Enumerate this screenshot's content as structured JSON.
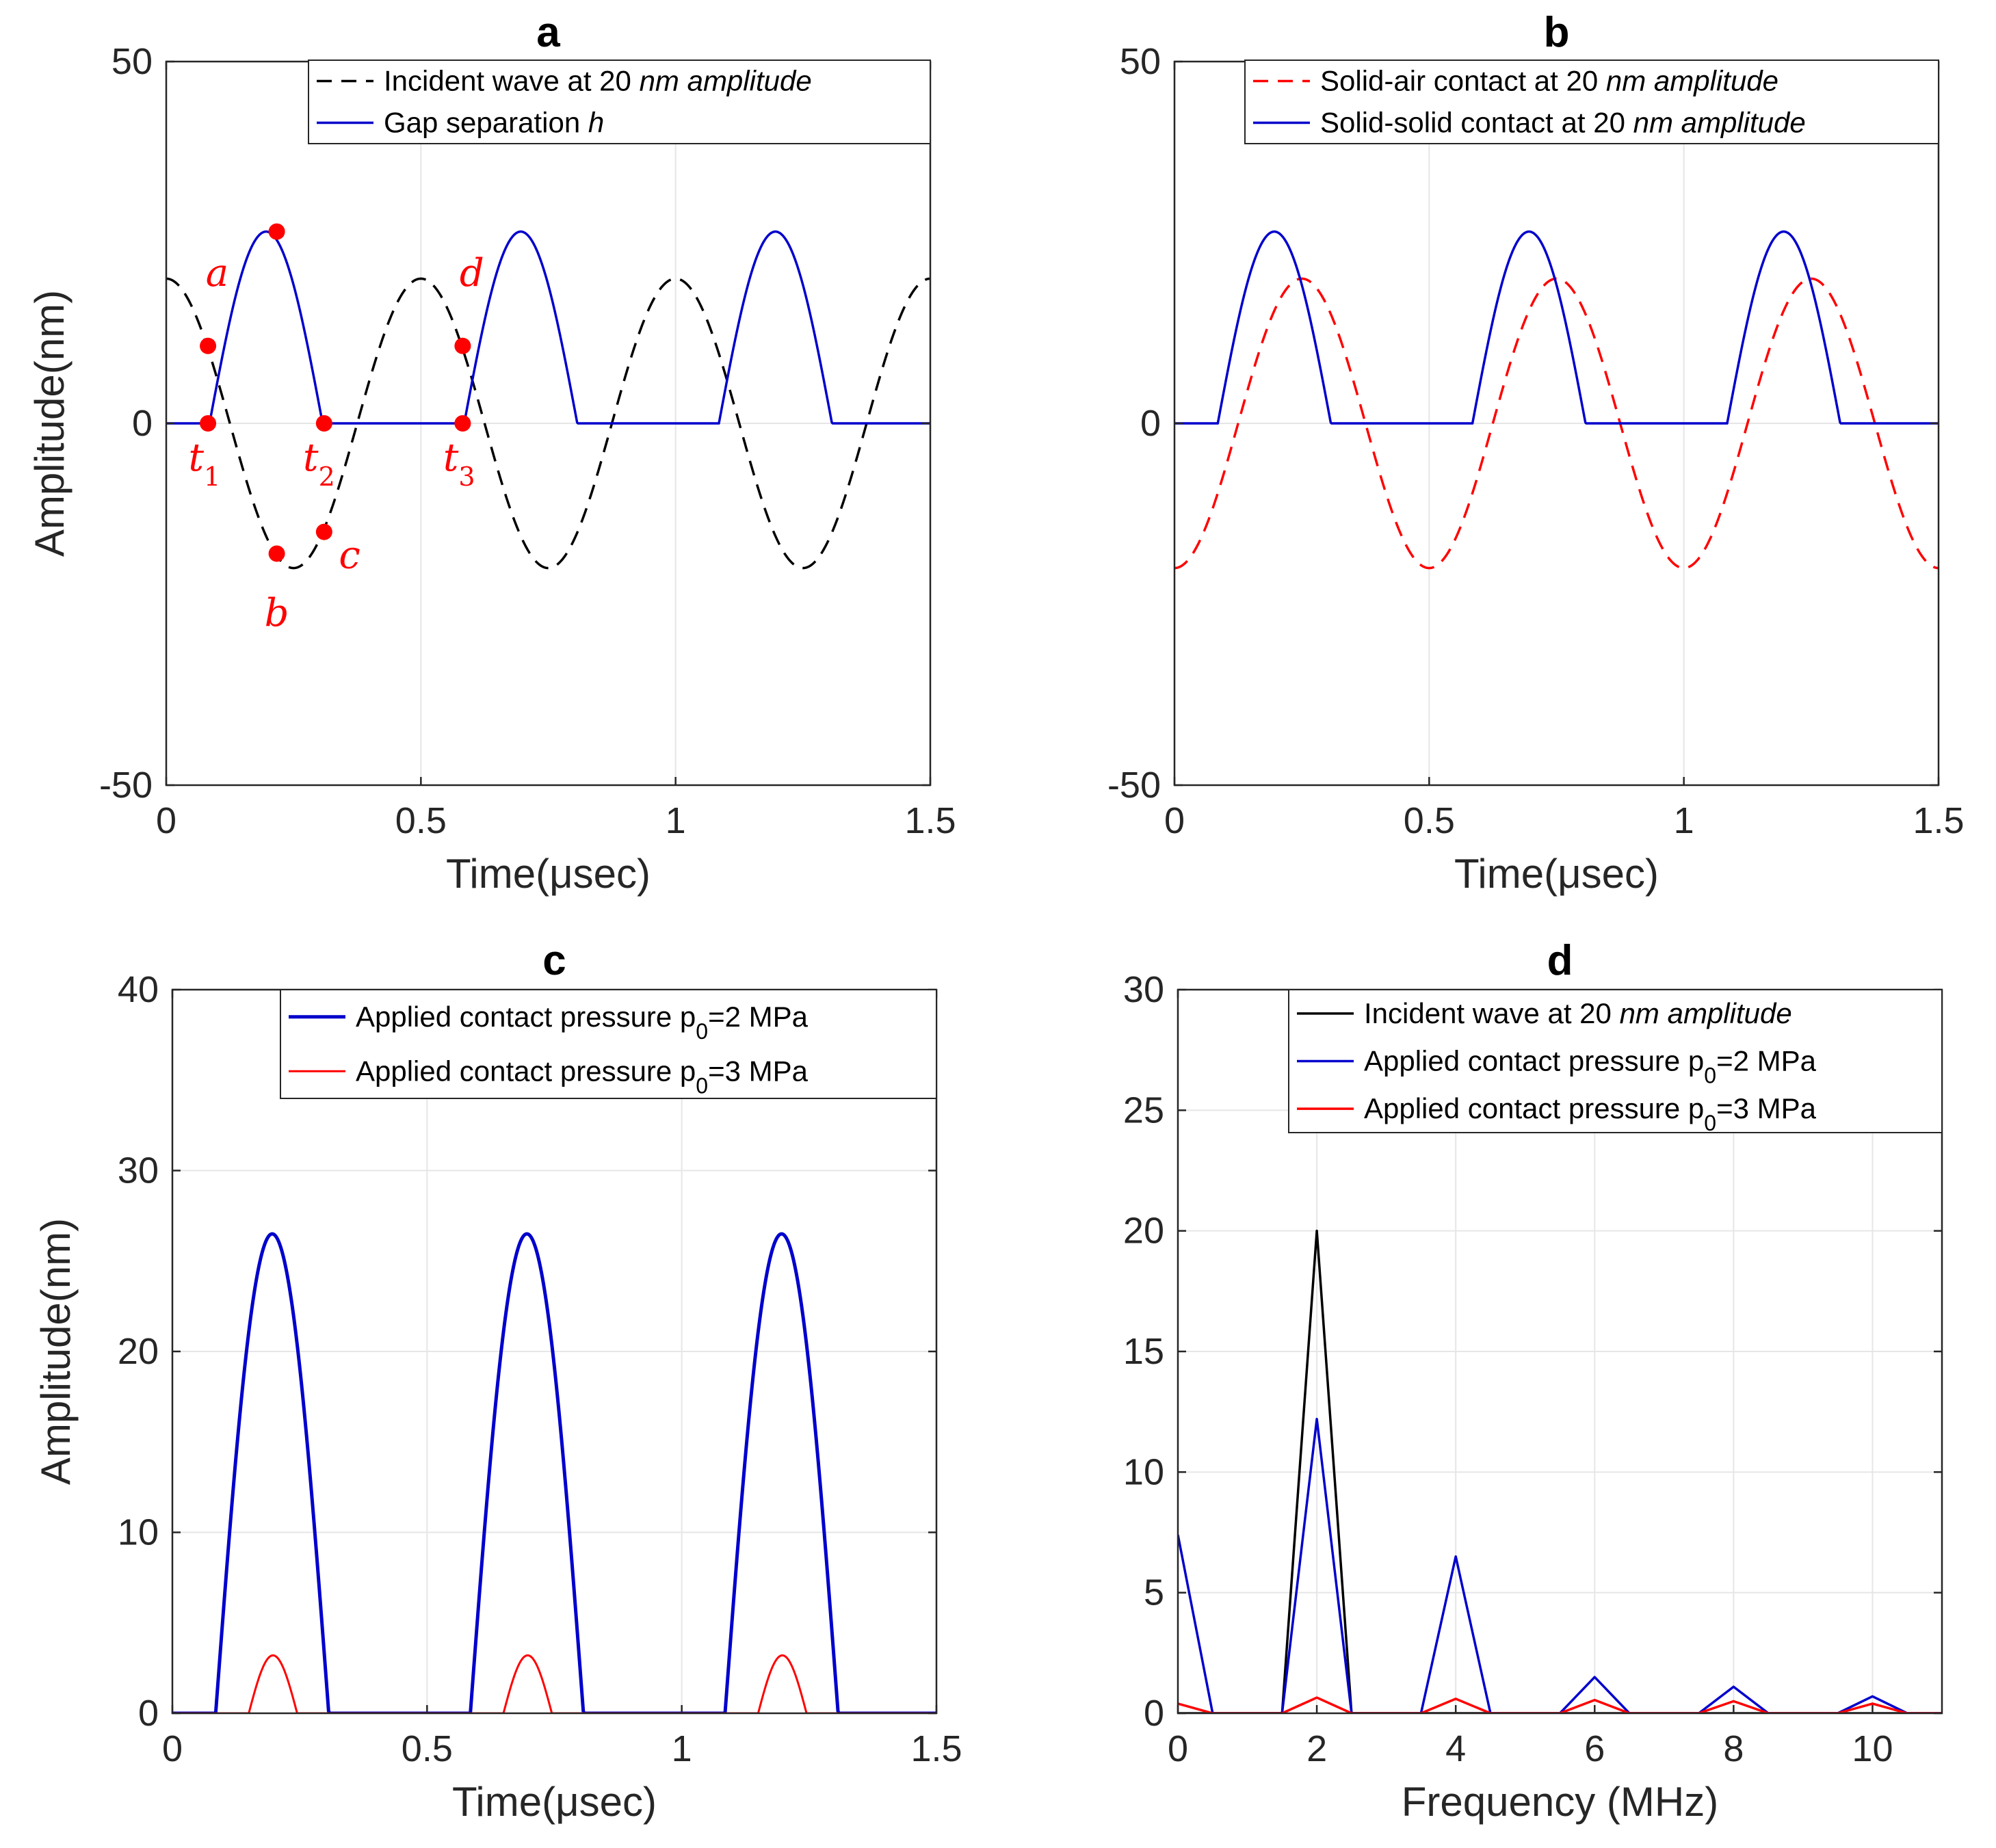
{
  "colors": {
    "black": "#000000",
    "blue": "#0000cc",
    "red": "#ff0000",
    "grid": "#e6e6e6",
    "axis": "#262626"
  },
  "chart_data": [
    {
      "id": "a",
      "type": "line",
      "title": "a",
      "xlabel": "Time(μsec)",
      "ylabel": "Amplitude(nm)",
      "xlim": [
        0,
        1.5
      ],
      "ylim": [
        -50,
        50
      ],
      "xticks": [
        0,
        0.5,
        1,
        1.5
      ],
      "xtick_labels": [
        "0",
        "0.5",
        "1",
        "1.5"
      ],
      "yticks": [
        -50,
        0,
        50
      ],
      "ytick_labels": [
        "-50",
        "0",
        "50"
      ],
      "grid": true,
      "legend_position": "top-right",
      "series": [
        {
          "name": "Incident wave at 20 nm amplitude",
          "legend_plain": "Incident wave at 20 ",
          "legend_italic": "nm amplitude",
          "legend_tail": "",
          "style": "dashed",
          "color": "black",
          "func": "cos",
          "amplitude": 20,
          "frequency_mhz": 2,
          "phase": 0
        },
        {
          "name": "Gap separation h",
          "legend_plain": "Gap separation ",
          "legend_italic": "h",
          "legend_tail": "",
          "style": "solid",
          "color": "blue",
          "func": "clipped_sin",
          "amplitude": 26.5,
          "period": 0.5,
          "segments": [
            [
              0.085,
              0.307
            ]
          ]
        }
      ],
      "annotations": [
        {
          "label": "a",
          "sub": "",
          "x": 0.082,
          "y": 10.7,
          "tx": 0.1,
          "ty": 19,
          "dot": true
        },
        {
          "label": "t",
          "sub": "1",
          "x": 0.082,
          "y": 0,
          "tx": 0.075,
          "ty": -6.5,
          "dot": true
        },
        {
          "label": "",
          "sub": "",
          "x": 0.217,
          "y": 26.5,
          "tx": 0,
          "ty": 0,
          "dot": true
        },
        {
          "label": "b",
          "sub": "",
          "x": 0.217,
          "y": -18,
          "tx": 0.217,
          "ty": -28,
          "dot": true
        },
        {
          "label": "c",
          "sub": "",
          "x": 0.31,
          "y": -15,
          "tx": 0.36,
          "ty": -20,
          "dot": true
        },
        {
          "label": "t",
          "sub": "2",
          "x": 0.31,
          "y": 0,
          "tx": 0.3,
          "ty": -6.5,
          "dot": true
        },
        {
          "label": "d",
          "sub": "",
          "x": 0.582,
          "y": 10.7,
          "tx": 0.6,
          "ty": 19,
          "dot": true
        },
        {
          "label": "t",
          "sub": "3",
          "x": 0.582,
          "y": 0,
          "tx": 0.575,
          "ty": -6.5,
          "dot": true
        }
      ]
    },
    {
      "id": "b",
      "type": "line",
      "title": "b",
      "xlabel": "Time(μsec)",
      "ylabel": "",
      "xlim": [
        0,
        1.5
      ],
      "ylim": [
        -50,
        50
      ],
      "xticks": [
        0,
        0.5,
        1,
        1.5
      ],
      "xtick_labels": [
        "0",
        "0.5",
        "1",
        "1.5"
      ],
      "yticks": [
        -50,
        0,
        50
      ],
      "ytick_labels": [
        "-50",
        "0",
        "50"
      ],
      "grid": true,
      "legend_position": "top-right",
      "series": [
        {
          "name": "Solid-air contact at 20 nm amplitude",
          "legend_plain": "Solid-air contact at 20 ",
          "legend_italic": "nm amplitude",
          "legend_tail": "",
          "style": "dashed",
          "color": "red",
          "func": "cos",
          "amplitude": 20,
          "frequency_mhz": 2,
          "phase": 3.14159
        },
        {
          "name": "Solid-solid contact at 20 nm amplitude",
          "legend_plain": "Solid-solid contact at 20 ",
          "legend_italic": "nm amplitude",
          "legend_tail": "",
          "style": "solid",
          "color": "blue",
          "func": "clipped_sin",
          "amplitude": 26.5,
          "period": 0.5,
          "segments": [
            [
              0.085,
              0.307
            ]
          ]
        }
      ],
      "annotations": []
    },
    {
      "id": "c",
      "type": "line",
      "title": "c",
      "xlabel": "Time(μsec)",
      "ylabel": "Amplitude(nm)",
      "xlim": [
        0,
        1.5
      ],
      "ylim": [
        0,
        40
      ],
      "xticks": [
        0,
        0.5,
        1,
        1.5
      ],
      "xtick_labels": [
        "0",
        "0.5",
        "1",
        "1.5"
      ],
      "yticks": [
        0,
        10,
        20,
        30,
        40
      ],
      "ytick_labels": [
        "0",
        "10",
        "20",
        "30",
        "40"
      ],
      "grid": true,
      "legend_position": "top-right",
      "series": [
        {
          "name": "Applied contact pressure p0=2 MPa",
          "legend_plain": "Applied contact pressure p",
          "legend_sub": "0",
          "legend_tail": "=2 MPa",
          "style": "solid",
          "width": 5,
          "color": "blue",
          "func": "clipped_sin",
          "amplitude": 26.5,
          "period": 0.5,
          "segments": [
            [
              0.085,
              0.307
            ]
          ]
        },
        {
          "name": "Applied contact pressure p0=3 MPa",
          "legend_plain": "Applied contact pressure p",
          "legend_sub": "0",
          "legend_tail": "=3 MPa",
          "style": "solid",
          "width": 3,
          "color": "red",
          "func": "clipped_sin",
          "amplitude": 3.2,
          "period": 0.5,
          "segments": [
            [
              0.15,
              0.245
            ]
          ]
        }
      ],
      "annotations": []
    },
    {
      "id": "d",
      "type": "line",
      "title": "d",
      "xlabel": "Frequency (MHz)",
      "ylabel": "",
      "xlim": [
        0,
        11
      ],
      "ylim": [
        0,
        30
      ],
      "xticks": [
        0,
        2,
        4,
        6,
        8,
        10
      ],
      "xtick_labels": [
        "0",
        "2",
        "4",
        "6",
        "8",
        "10"
      ],
      "yticks": [
        0,
        5,
        10,
        15,
        20,
        25,
        30
      ],
      "ytick_labels": [
        "0",
        "5",
        "10",
        "15",
        "20",
        "25",
        "30"
      ],
      "grid": true,
      "legend_position": "top-right",
      "series": [
        {
          "name": "Incident wave at 20 nm amplitude",
          "legend_plain": "Incident wave at 20 ",
          "legend_italic": "nm amplitude",
          "legend_tail": "",
          "style": "solid",
          "color": "black",
          "x": [
            0,
            1.5,
            2,
            2.5,
            11
          ],
          "y": [
            0,
            0,
            20,
            0,
            0
          ]
        },
        {
          "name": "Applied contact pressure p0=2 MPa",
          "legend_plain": "Applied contact pressure p",
          "legend_sub": "0",
          "legend_tail": "=2 MPa",
          "style": "solid",
          "color": "blue",
          "x": [
            0,
            0.5,
            1.5,
            2,
            2.5,
            3.5,
            4,
            4.5,
            5.5,
            6,
            6.5,
            7.5,
            8,
            8.5,
            9.5,
            10,
            10.5,
            11
          ],
          "y": [
            7.4,
            0,
            0,
            12.2,
            0,
            0,
            6.5,
            0,
            0,
            1.5,
            0,
            0,
            1.1,
            0,
            0,
            0.7,
            0,
            0
          ]
        },
        {
          "name": "Applied contact pressure p0=3 MPa",
          "legend_plain": "Applied contact pressure p",
          "legend_sub": "0",
          "legend_tail": "=3 MPa",
          "style": "solid",
          "color": "red",
          "x": [
            0,
            0.5,
            1.5,
            2,
            2.5,
            3.5,
            4,
            4.5,
            5.5,
            6,
            6.5,
            7.5,
            8,
            8.5,
            9.5,
            10,
            10.5,
            11
          ],
          "y": [
            0.4,
            0,
            0,
            0.65,
            0,
            0,
            0.6,
            0,
            0,
            0.55,
            0,
            0,
            0.5,
            0,
            0,
            0.4,
            0,
            0
          ]
        }
      ],
      "annotations": []
    }
  ]
}
